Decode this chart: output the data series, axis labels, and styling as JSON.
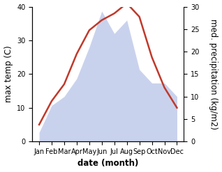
{
  "months": [
    "Jan",
    "Feb",
    "Mar",
    "Apr",
    "May",
    "Jun",
    "Jul",
    "Aug",
    "Sep",
    "Oct",
    "Nov",
    "Dec"
  ],
  "temperature": [
    5,
    12,
    17,
    26,
    33,
    36,
    38,
    41,
    37,
    25,
    16,
    10
  ],
  "precipitation": [
    2,
    8,
    10,
    14,
    21,
    29,
    24,
    27,
    16,
    13,
    13,
    10
  ],
  "temp_color": "#c0392b",
  "precip_color": "#b8c4e8",
  "left_ylim": [
    0,
    40
  ],
  "right_ylim": [
    0,
    30
  ],
  "left_yticks": [
    0,
    10,
    20,
    30,
    40
  ],
  "right_yticks": [
    0,
    5,
    10,
    15,
    20,
    25,
    30
  ],
  "xlabel": "date (month)",
  "ylabel_left": "max temp (C)",
  "ylabel_right": "med. precipitation (kg/m2)",
  "bg_color": "#ffffff",
  "label_fontsize": 8.5
}
